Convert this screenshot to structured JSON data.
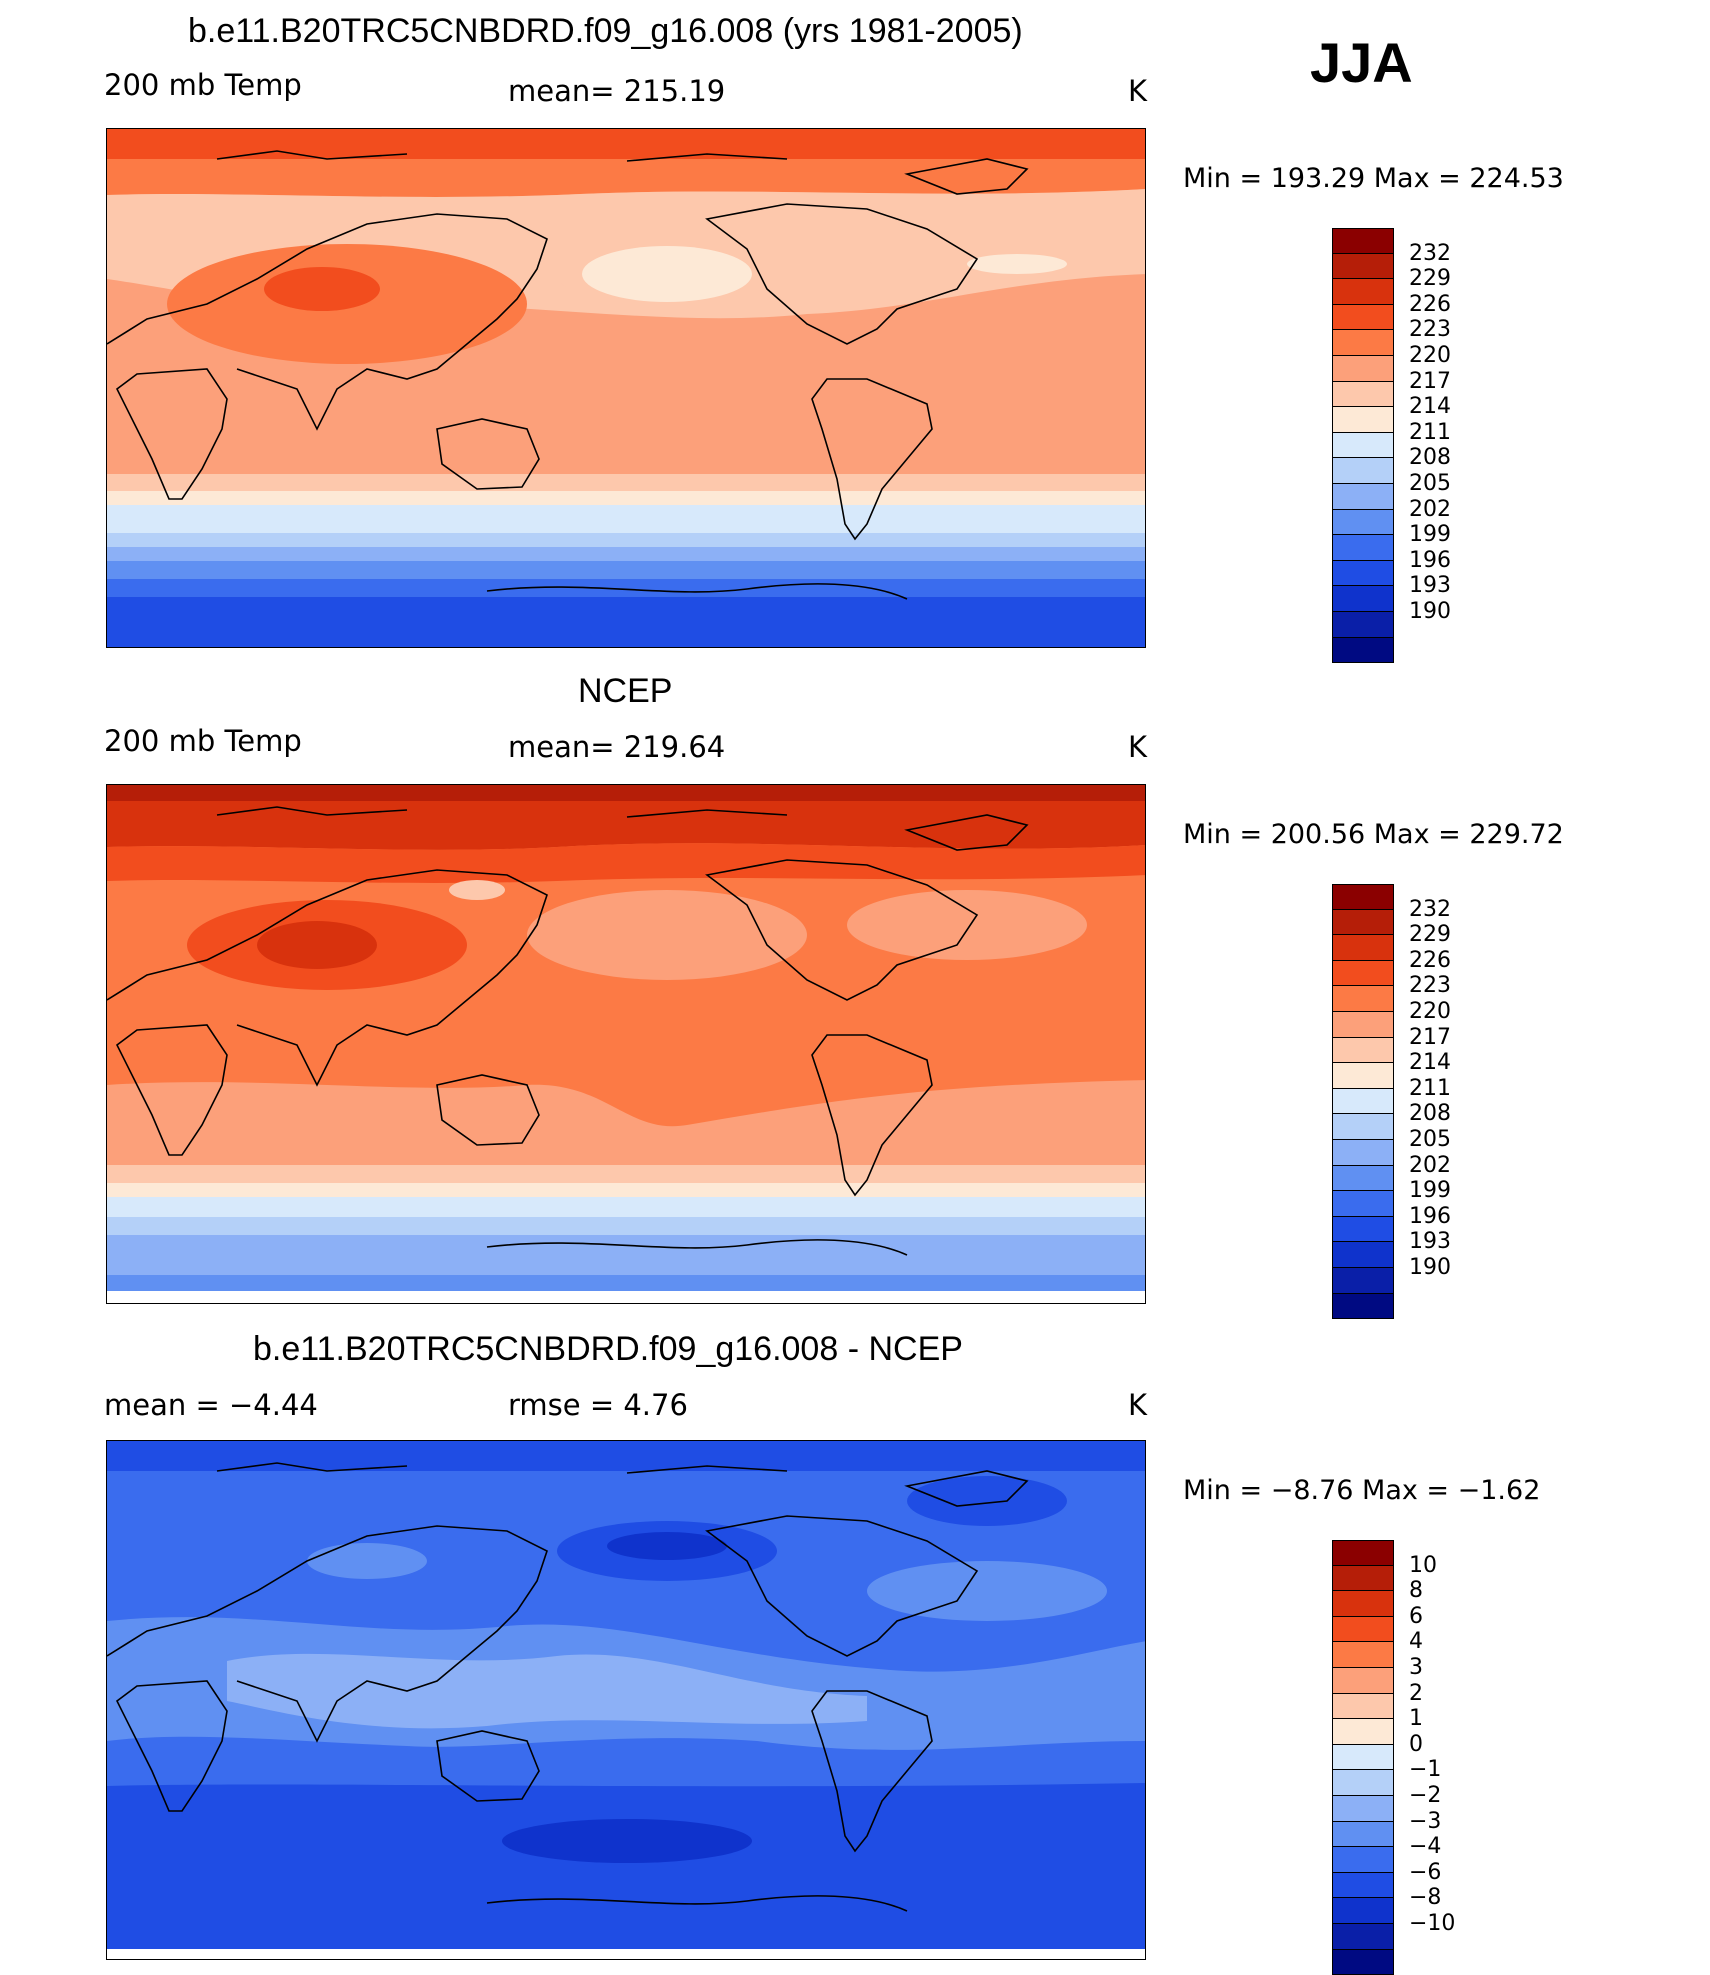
{
  "season": "JJA",
  "panels": [
    {
      "title": "b.e11.B20TRC5CNBDRD.f09_g16.008 (yrs 1981-2005)",
      "left_label": "200 mb Temp",
      "center_label": "mean=  215.19",
      "units": "K",
      "minmax": "Min  =  193.29  Max  =  224.53"
    },
    {
      "title": "NCEP",
      "left_label": "200 mb Temp",
      "center_label": "mean=  219.64",
      "units": "K",
      "minmax": "Min  =  200.56  Max  =  229.72"
    },
    {
      "title": "b.e11.B20TRC5CNBDRD.f09_g16.008 - NCEP",
      "left_label": "mean  =    −4.44",
      "center_label": "rmse  =     4.76",
      "units": "K",
      "minmax": "Min  =    −8.76  Max  =    −1.62"
    }
  ],
  "colorbars": {
    "colors": [
      "#8b0000",
      "#b51e08",
      "#d8320d",
      "#f24d1e",
      "#fc7a45",
      "#fca07a",
      "#fdc8ac",
      "#fde9d6",
      "#d7e9fb",
      "#b4d0f8",
      "#8cb0f6",
      "#6090f2",
      "#3a6cee",
      "#1f4de4",
      "#0f33cc",
      "#0a1fa8",
      "#000a82"
    ],
    "temperature_labels": [
      "232",
      "229",
      "226",
      "223",
      "220",
      "217",
      "214",
      "211",
      "208",
      "205",
      "202",
      "199",
      "196",
      "193",
      "190"
    ],
    "difference_labels": [
      "10",
      "8",
      "6",
      "4",
      "3",
      "2",
      "1",
      "0",
      "−1",
      "−2",
      "−3",
      "−4",
      "−6",
      "−8",
      "−10"
    ]
  },
  "chart_data": [
    {
      "type": "heatmap",
      "title": "b.e11.B20TRC5CNBDRD.f09_g16.008 (yrs 1981-2005)",
      "variable": "200 mb Temp",
      "units": "K",
      "mean": 215.19,
      "min": 193.29,
      "max": 224.53,
      "contour_levels": [
        190,
        193,
        196,
        199,
        202,
        205,
        208,
        211,
        214,
        217,
        220,
        223,
        226,
        229,
        232
      ],
      "zonal_profile_lat_from_north": [
        {
          "lat": 90,
          "value": 221.5
        },
        {
          "lat": 75,
          "value": 219
        },
        {
          "lat": 60,
          "value": 216.5
        },
        {
          "lat": 45,
          "value": 215.5
        },
        {
          "lat": 30,
          "value": 217
        },
        {
          "lat": 15,
          "value": 218
        },
        {
          "lat": 0,
          "value": 218
        },
        {
          "lat": -15,
          "value": 218
        },
        {
          "lat": -30,
          "value": 216
        },
        {
          "lat": -40,
          "value": 212.5
        },
        {
          "lat": -50,
          "value": 207
        },
        {
          "lat": -60,
          "value": 200
        },
        {
          "lat": -75,
          "value": 195
        },
        {
          "lat": -90,
          "value": 193.5
        }
      ]
    },
    {
      "type": "heatmap",
      "title": "NCEP",
      "variable": "200 mb Temp",
      "units": "K",
      "mean": 219.64,
      "min": 200.56,
      "max": 229.72,
      "contour_levels": [
        190,
        193,
        196,
        199,
        202,
        205,
        208,
        211,
        214,
        217,
        220,
        223,
        226,
        229,
        232
      ],
      "zonal_profile_lat_from_north": [
        {
          "lat": 90,
          "value": 227
        },
        {
          "lat": 75,
          "value": 224
        },
        {
          "lat": 60,
          "value": 221.5
        },
        {
          "lat": 45,
          "value": 219.5
        },
        {
          "lat": 30,
          "value": 221
        },
        {
          "lat": 15,
          "value": 221
        },
        {
          "lat": 0,
          "value": 221
        },
        {
          "lat": -15,
          "value": 221
        },
        {
          "lat": -30,
          "value": 218.5
        },
        {
          "lat": -40,
          "value": 216
        },
        {
          "lat": -50,
          "value": 211
        },
        {
          "lat": -60,
          "value": 206
        },
        {
          "lat": -75,
          "value": 203
        },
        {
          "lat": -90,
          "value": 203
        }
      ]
    },
    {
      "type": "heatmap",
      "title": "b.e11.B20TRC5CNBDRD.f09_g16.008 - NCEP",
      "units": "K",
      "mean": -4.44,
      "rmse": 4.76,
      "min": -8.76,
      "max": -1.62,
      "contour_levels": [
        -10,
        -8,
        -6,
        -4,
        -3,
        -2,
        -1,
        0,
        1,
        2,
        3,
        4,
        6,
        8,
        10
      ],
      "zonal_profile_lat_from_north": [
        {
          "lat": 90,
          "value": -5
        },
        {
          "lat": 75,
          "value": -5
        },
        {
          "lat": 60,
          "value": -4.5
        },
        {
          "lat": 45,
          "value": -3.5
        },
        {
          "lat": 30,
          "value": -3.5
        },
        {
          "lat": 15,
          "value": -3.5
        },
        {
          "lat": 0,
          "value": -2.5
        },
        {
          "lat": -15,
          "value": -2.5
        },
        {
          "lat": -30,
          "value": -3.5
        },
        {
          "lat": -40,
          "value": -4.5
        },
        {
          "lat": -50,
          "value": -5
        },
        {
          "lat": -60,
          "value": -5
        },
        {
          "lat": -75,
          "value": -5
        },
        {
          "lat": -90,
          "value": -5
        }
      ]
    }
  ]
}
